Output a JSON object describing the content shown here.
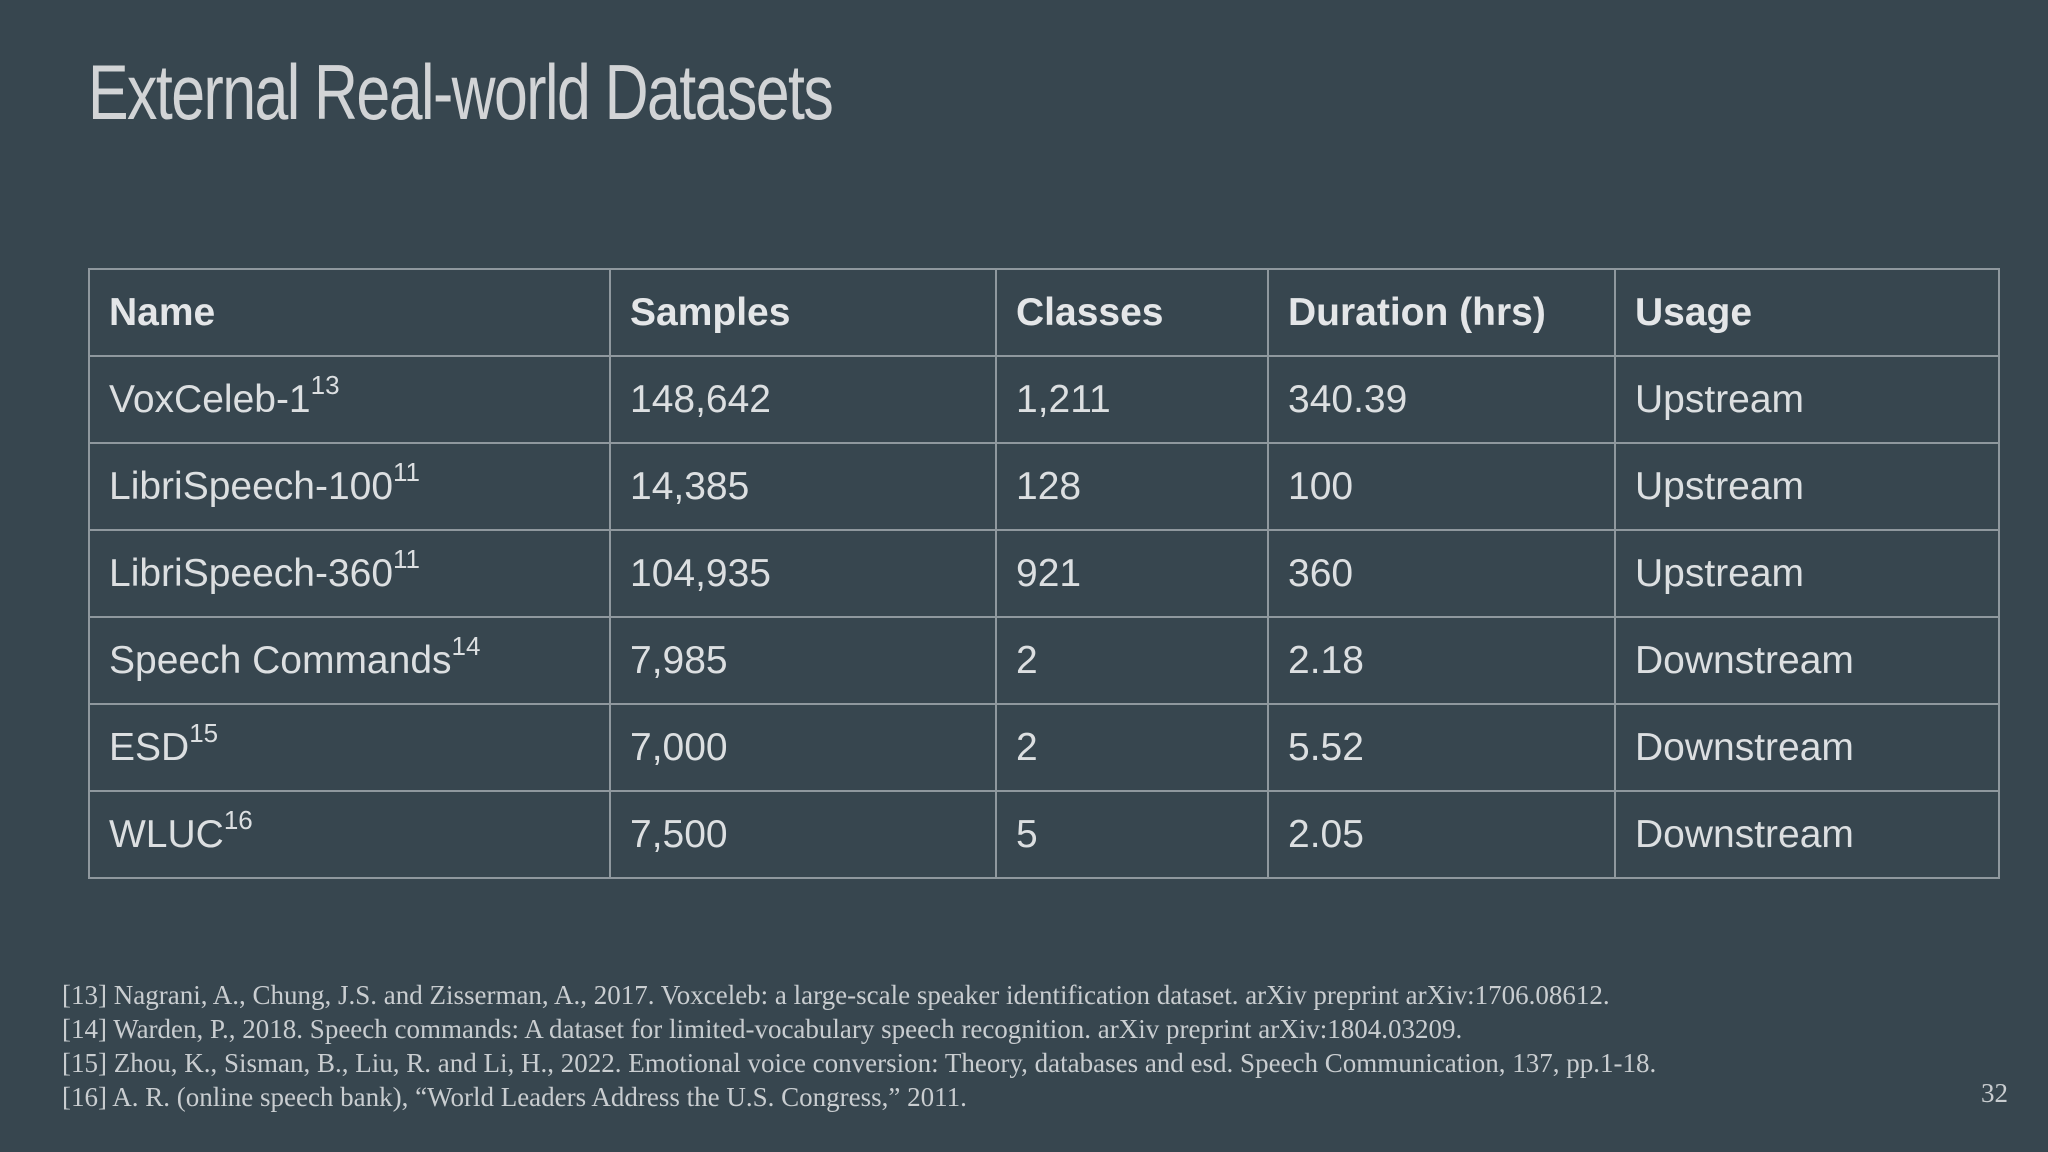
{
  "slide": {
    "title": "External Real-world Datasets",
    "page_number": "32"
  },
  "table": {
    "headers": [
      "Name",
      "Samples",
      "Classes",
      "Duration (hrs)",
      "Usage"
    ],
    "rows": [
      {
        "name": "VoxCeleb-1",
        "ref": "13",
        "samples": "148,642",
        "classes": "1,211",
        "duration": "340.39",
        "usage": "Upstream"
      },
      {
        "name": "LibriSpeech-100",
        "ref": "11",
        "samples": "14,385",
        "classes": "128",
        "duration": "100",
        "usage": "Upstream"
      },
      {
        "name": "LibriSpeech-360",
        "ref": "11",
        "samples": "104,935",
        "classes": "921",
        "duration": "360",
        "usage": "Upstream"
      },
      {
        "name": "Speech Commands",
        "ref": "14",
        "samples": "7,985",
        "classes": "2",
        "duration": "2.18",
        "usage": "Downstream"
      },
      {
        "name": "ESD",
        "ref": "15",
        "samples": "7,000",
        "classes": "2",
        "duration": "5.52",
        "usage": "Downstream"
      },
      {
        "name": "WLUC",
        "ref": "16",
        "samples": "7,500",
        "classes": "5",
        "duration": "2.05",
        "usage": "Downstream"
      }
    ]
  },
  "references": [
    "[13] Nagrani, A., Chung, J.S. and Zisserman, A., 2017. Voxceleb: a large-scale speaker identification dataset. arXiv preprint arXiv:1706.08612.",
    "[14] Warden, P., 2018. Speech commands: A dataset for limited-vocabulary speech recognition. arXiv preprint arXiv:1804.03209.",
    "[15] Zhou, K., Sisman, B., Liu, R. and Li, H., 2022. Emotional voice conversion: Theory, databases and esd. Speech Communication, 137, pp.1-18.",
    "[16] A. R. (online speech bank), “World Leaders Address the U.S. Congress,” 2011."
  ]
}
